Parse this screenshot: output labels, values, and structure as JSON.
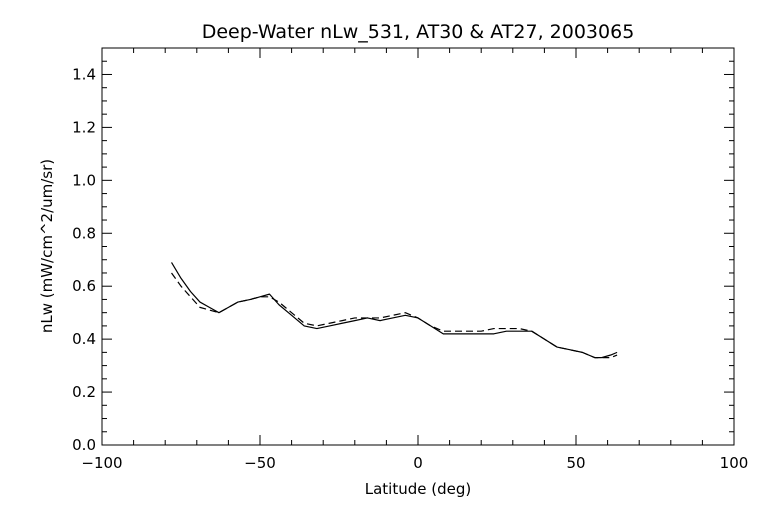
{
  "chart_data": {
    "type": "line",
    "title": "Deep-Water nLw_531, AT30 & AT27, 2003065",
    "xlabel": "Latitude (deg)",
    "ylabel": "nLw (mW/cm^2/um/sr)",
    "xlim": [
      -100,
      100
    ],
    "ylim": [
      0.0,
      1.5
    ],
    "xticks": [
      -100,
      -50,
      0,
      50,
      100
    ],
    "xtick_labels": [
      "−100",
      "−50",
      "0",
      "50",
      "100"
    ],
    "yticks": [
      0.0,
      0.2,
      0.4,
      0.6,
      0.8,
      1.0,
      1.2,
      1.4
    ],
    "ytick_labels": [
      "0.0",
      "0.2",
      "0.4",
      "0.6",
      "0.8",
      "1.0",
      "1.2",
      "1.4"
    ],
    "grid": false,
    "series": [
      {
        "line_style": "solid",
        "color": "#000000",
        "x": [
          -78,
          -75,
          -72,
          -69,
          -66,
          -63,
          -60,
          -57,
          -53,
          -50,
          -47,
          -44,
          -40,
          -36,
          -32,
          -28,
          -24,
          -20,
          -16,
          -12,
          -8,
          -4,
          0,
          4,
          8,
          12,
          16,
          20,
          24,
          28,
          32,
          36,
          40,
          44,
          48,
          52,
          56,
          58,
          61,
          63
        ],
        "y": [
          0.69,
          0.63,
          0.58,
          0.54,
          0.52,
          0.5,
          0.52,
          0.54,
          0.55,
          0.56,
          0.57,
          0.53,
          0.49,
          0.45,
          0.44,
          0.45,
          0.46,
          0.47,
          0.48,
          0.47,
          0.48,
          0.49,
          0.48,
          0.45,
          0.42,
          0.42,
          0.42,
          0.42,
          0.42,
          0.43,
          0.43,
          0.43,
          0.4,
          0.37,
          0.36,
          0.35,
          0.33,
          0.33,
          0.34,
          0.35
        ]
      },
      {
        "line_style": "dashed",
        "color": "#000000",
        "x": [
          -78,
          -75,
          -72,
          -69,
          -66,
          -63,
          -60,
          -57,
          -53,
          -50,
          -47,
          -44,
          -40,
          -36,
          -32,
          -28,
          -24,
          -20,
          -16,
          -12,
          -8,
          -4,
          0,
          4,
          8,
          12,
          16,
          20,
          24,
          28,
          32,
          36,
          40,
          44,
          48,
          52,
          56,
          58,
          61,
          63
        ],
        "y": [
          0.65,
          0.6,
          0.56,
          0.52,
          0.51,
          0.5,
          0.52,
          0.54,
          0.55,
          0.56,
          0.56,
          0.54,
          0.5,
          0.46,
          0.45,
          0.46,
          0.47,
          0.48,
          0.48,
          0.48,
          0.49,
          0.5,
          0.48,
          0.45,
          0.43,
          0.43,
          0.43,
          0.43,
          0.44,
          0.44,
          0.44,
          0.43,
          0.4,
          0.37,
          0.36,
          0.35,
          0.33,
          0.33,
          0.33,
          0.34
        ]
      }
    ]
  }
}
